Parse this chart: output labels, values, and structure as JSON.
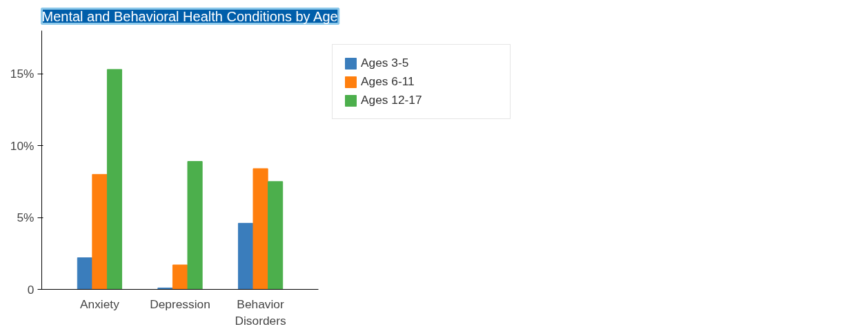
{
  "chart_data": {
    "type": "bar",
    "title": "Mental and Behavioral Health Conditions by Age",
    "categories": [
      "Anxiety",
      "Depression",
      "Behavior Disorders"
    ],
    "series": [
      {
        "name": "Ages 3-5",
        "color": "#3a7dbc",
        "values": [
          2.2,
          0.1,
          4.6
        ]
      },
      {
        "name": "Ages 6-11",
        "color": "#ff7f0e",
        "values": [
          8.0,
          1.7,
          8.4
        ]
      },
      {
        "name": "Ages 12-17",
        "color": "#4caf4c",
        "values": [
          15.3,
          8.9,
          7.5
        ]
      }
    ],
    "ylim": [
      0,
      18
    ],
    "yticks": [
      0,
      {
        "value": 5,
        "label": "5%"
      },
      {
        "value": 10,
        "label": "10%"
      },
      {
        "value": 15,
        "label": "15%"
      }
    ],
    "grid": false,
    "legend": "right"
  }
}
